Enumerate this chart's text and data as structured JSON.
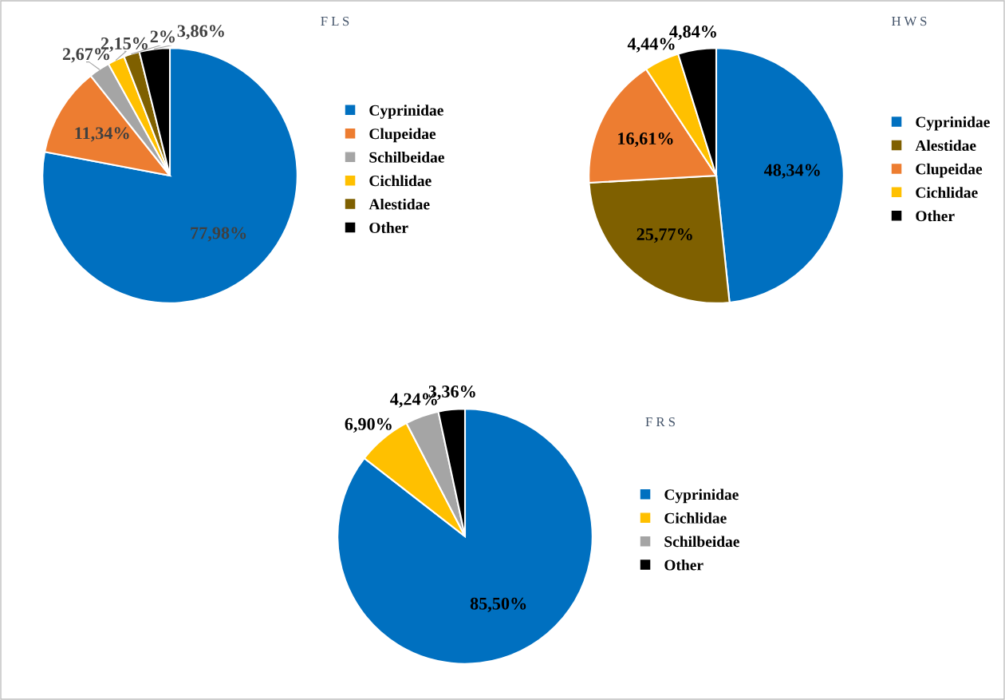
{
  "chart_data": [
    {
      "type": "pie",
      "title": "F L S",
      "categories": [
        "Cyprinidae",
        "Clupeidae",
        "Schilbeidae",
        "Cichlidae",
        "Alestidae",
        "Other"
      ],
      "values": [
        77.98,
        11.34,
        2.67,
        2.15,
        2,
        3.86
      ],
      "colors": [
        "#0070c0",
        "#ed7d31",
        "#a5a5a5",
        "#ffc000",
        "#7f6000",
        "#000000"
      ],
      "value_labels": [
        "77,98%",
        "11,34%",
        "2,67%",
        "2,15%",
        "2%",
        "3,86%"
      ],
      "legend": "right"
    },
    {
      "type": "pie",
      "title": "H W S",
      "categories": [
        "Cyprinidae",
        "Alestidae",
        "Clupeidae",
        "Cichlidae",
        "Other"
      ],
      "values": [
        48.34,
        25.77,
        16.61,
        4.44,
        4.84
      ],
      "colors": [
        "#0070c0",
        "#7f6000",
        "#ed7d31",
        "#ffc000",
        "#000000"
      ],
      "value_labels": [
        "48,34%",
        "25,77%",
        "16,61%",
        "4,44%",
        "4,84%"
      ],
      "legend": "right"
    },
    {
      "type": "pie",
      "title": "F R S",
      "categories": [
        "Cyprinidae",
        "Cichlidae",
        "Schilbeidae",
        "Other"
      ],
      "values": [
        85.5,
        6.9,
        4.24,
        3.36
      ],
      "colors": [
        "#0070c0",
        "#ffc000",
        "#a5a5a5",
        "#000000"
      ],
      "value_labels": [
        "85,50%",
        "6,90%",
        "4,24%",
        "3,36%"
      ],
      "legend": "right"
    }
  ]
}
